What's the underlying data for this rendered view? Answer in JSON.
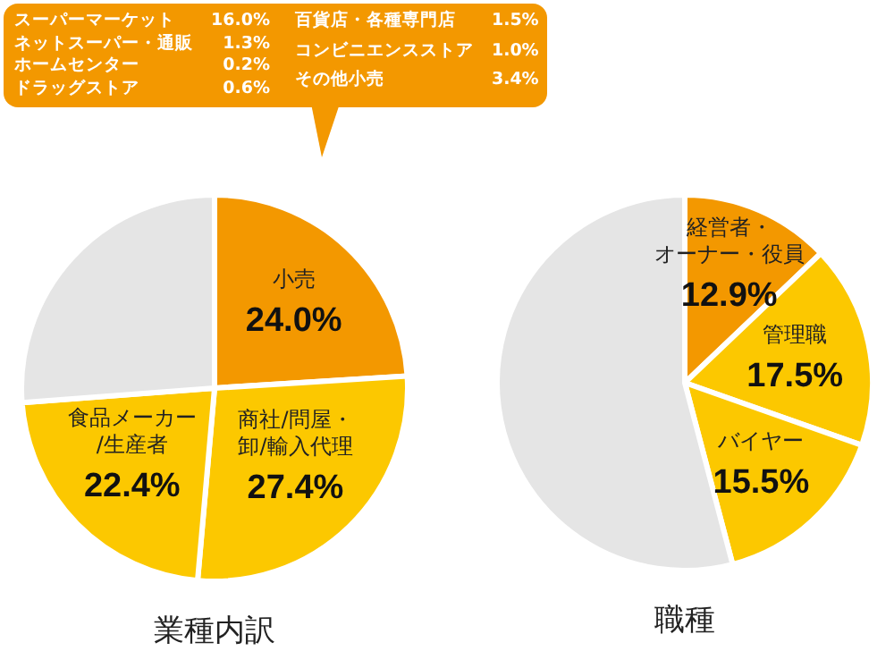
{
  "chart_data": [
    {
      "type": "pie",
      "title": "業種内訳",
      "categories": [
        "小売",
        "商社/問屋・卸/輸入代理",
        "食品メーカー/生産者",
        null
      ],
      "values": [
        24.0,
        27.4,
        22.4,
        26.2
      ],
      "colors": [
        "#f39800",
        "#fcc800",
        "#fcc800",
        "#e5e5e5"
      ],
      "value_labels": [
        "24.0%",
        "27.4%",
        "22.4%",
        null
      ],
      "annotations": [
        "スーパーマーケット 16.0%",
        "ネットスーパー・通販 1.3%",
        "ホームセンター 0.2%",
        "ドラッグストア 0.6%",
        "百貨店・各種専門店 1.5%",
        "コンビニエンスストア 1.0%",
        "その他小売 3.4%"
      ]
    },
    {
      "type": "pie",
      "title": "職種",
      "categories": [
        "経営者・オーナー・役員",
        "管理職",
        "バイヤー",
        null
      ],
      "values": [
        12.9,
        17.5,
        15.5,
        54.1
      ],
      "colors": [
        "#f39800",
        "#fcc800",
        "#fcc800",
        "#e5e5e5"
      ],
      "value_labels": [
        "12.9%",
        "17.5%",
        "15.5%",
        null
      ]
    }
  ]
}
